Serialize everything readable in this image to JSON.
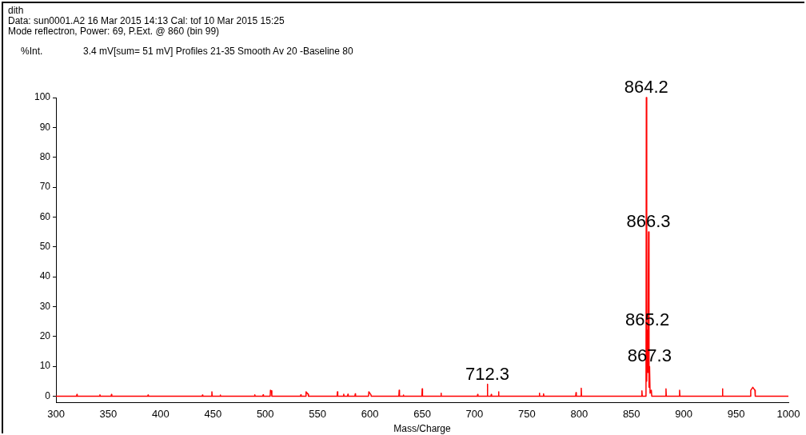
{
  "chart_data": {
    "type": "line",
    "title": "dith",
    "subtitle": "Data: sun0001.A2 16 Mar 2015 14:13 Cal: tof 10 Mar 2015 15:25",
    "ylabel": "%Int.",
    "xlabel": "Mass/Charge",
    "annotations": [
      "Mode reflectron, Power: 69, P.Ext. @ 860 (bin 99)",
      "3.4 mV[sum= 51 mV]  Profiles 21-35 Smooth Av 20 -Baseline 80",
      {
        "text": "864.2",
        "x": 864.2,
        "y": 100
      },
      {
        "text": "866.3",
        "x": 866.3,
        "y": 55
      },
      {
        "text": "865.2",
        "x": 865.2,
        "y": 22
      },
      {
        "text": "867.3",
        "x": 867.3,
        "y": 10
      },
      {
        "text": "712.3",
        "x": 712.3,
        "y": 4
      }
    ],
    "x": [
      300,
      319.7,
      320,
      320.3,
      341.7,
      342,
      342.3,
      352.7,
      353,
      353.3,
      387.7,
      388,
      388.3,
      439.7,
      440,
      440.3,
      448.7,
      449,
      449.3,
      456.7,
      457,
      457.3,
      489.7,
      490,
      490.3,
      497.7,
      498,
      498.3,
      504.7,
      505,
      506,
      506.3,
      533.7,
      534,
      534.3,
      538.7,
      539,
      541,
      541.3,
      568.7,
      569,
      569.3,
      574.7,
      575,
      575.3,
      578.7,
      579,
      579.3,
      585.7,
      586,
      586.3,
      598.7,
      599,
      601,
      601.3,
      627.7,
      628,
      628.3,
      631.7,
      632,
      632.3,
      649.7,
      650,
      650.3,
      667.7,
      668,
      668.3,
      702.7,
      703,
      703.3,
      712,
      712.3,
      712.6,
      715.7,
      716,
      716.3,
      722.7,
      723,
      723.3,
      761.7,
      762,
      762.3,
      765.7,
      766,
      766.3,
      796.7,
      797,
      797.3,
      801.7,
      802,
      802.3,
      859.7,
      860,
      860.3,
      863.9,
      864.2,
      864.6,
      865.2,
      865.8,
      866.3,
      866.8,
      867.3,
      867.8,
      869,
      869.4,
      882.7,
      883,
      883.3,
      895.7,
      896,
      896.3,
      936.7,
      937,
      937.3,
      963.7,
      964,
      966,
      968,
      968.3,
      1000
    ],
    "series": [
      {
        "color": "#ff0000",
        "values": [
          0,
          0,
          0.6,
          0,
          0,
          0.5,
          0,
          0,
          0.6,
          0,
          0,
          0.4,
          0,
          0,
          0.4,
          0,
          0,
          1.5,
          0,
          0,
          0.4,
          0,
          0,
          0.5,
          0,
          0,
          0.5,
          0,
          0,
          2,
          1.8,
          0,
          0,
          0.5,
          0,
          0,
          1.5,
          0.7,
          0,
          0,
          1.5,
          0,
          0,
          0.7,
          0,
          0,
          0.7,
          0,
          0,
          0.8,
          0,
          0,
          1.5,
          0.5,
          0,
          0,
          2,
          0,
          0,
          0.4,
          0,
          0,
          2.5,
          0,
          0,
          1,
          0,
          0,
          0.6,
          0,
          0,
          4,
          0,
          0,
          0.6,
          0,
          0,
          1.5,
          0,
          0,
          1,
          0,
          0,
          0.8,
          0,
          0,
          1.2,
          0,
          0,
          2.7,
          0,
          0,
          1.8,
          0,
          0,
          100,
          5,
          22,
          8,
          55,
          3,
          10,
          1,
          2,
          0,
          0,
          2.5,
          0,
          0,
          2,
          0,
          0,
          2.5,
          0,
          0,
          2,
          3,
          2,
          0,
          0
        ]
      }
    ],
    "xlim": [
      300,
      1000
    ],
    "xticks": [
      300,
      350,
      400,
      450,
      500,
      550,
      600,
      650,
      700,
      750,
      800,
      850,
      900,
      950,
      1000
    ],
    "ylim": [
      -2,
      100
    ],
    "yticks": [
      0,
      10,
      20,
      30,
      40,
      50,
      60,
      70,
      80,
      90,
      100
    ],
    "grid": false,
    "legend": false,
    "marker": "none",
    "line_style": "solid"
  }
}
